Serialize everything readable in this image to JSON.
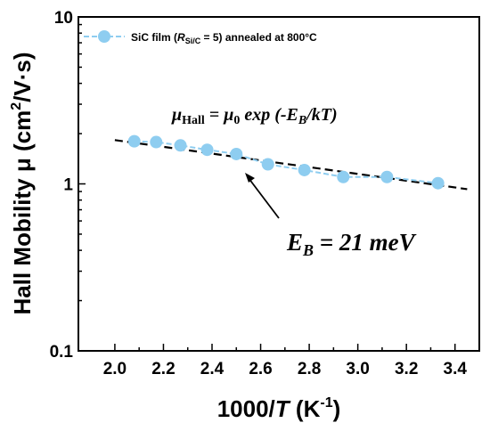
{
  "chart_data": {
    "type": "scatter",
    "xlabel": {
      "pre": "1000/",
      "var": "T",
      "unit_pre": " (K",
      "unit_sup": "-1",
      "unit_post": ")"
    },
    "ylabel": {
      "pre": "Hall Mobility μ (cm",
      "sup": "2",
      "post": "/V·s)"
    },
    "xlim": [
      1.85,
      3.5
    ],
    "ylim": [
      0.1,
      10
    ],
    "y_scale": "log",
    "x_ticks": [
      "2.0",
      "2.2",
      "2.4",
      "2.6",
      "2.8",
      "3.0",
      "3.2",
      "3.4"
    ],
    "y_ticks": [
      "0.1",
      "1",
      "10"
    ],
    "series": [
      {
        "name": "SiC film (R_Si/C = 5) annealed at 800°C",
        "color": "#8ecdf0",
        "style": "dashed-line-with-markers",
        "x": [
          2.08,
          2.17,
          2.27,
          2.38,
          2.5,
          2.63,
          2.78,
          2.94,
          3.12,
          3.33
        ],
        "y": [
          1.8,
          1.78,
          1.7,
          1.6,
          1.51,
          1.31,
          1.21,
          1.1,
          1.1,
          1.01
        ]
      },
      {
        "name": "fit",
        "color": "#000000",
        "style": "dashed",
        "x": [
          2.0,
          3.45
        ],
        "y": [
          1.83,
          0.93
        ]
      }
    ],
    "legend": {
      "label_pre": "SiC film (",
      "label_r": "R",
      "label_sub": "Si/C",
      "label_post": " = 5) annealed at 800°C",
      "placement": "top-left"
    },
    "annotations": {
      "equation": {
        "mu": "μ",
        "mu_sub": "Hall",
        "eq": " = μ",
        "sub0": "0",
        "rest": " exp (-E",
        "rest_sub": "B",
        "tail": "/kT)"
      },
      "eb_label": {
        "e": "E",
        "sub": "B",
        "rest": " = 21 meV"
      }
    }
  }
}
